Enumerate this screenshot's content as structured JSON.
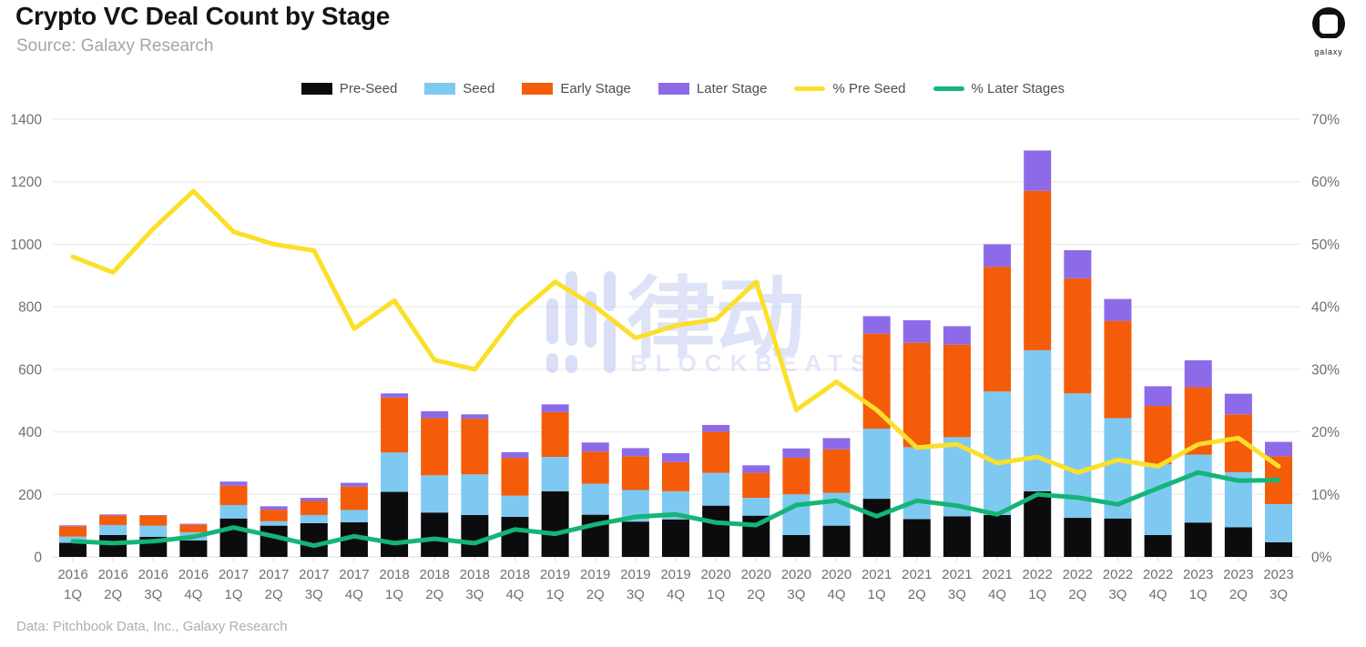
{
  "header": {
    "title": "Crypto VC Deal Count by Stage",
    "subtitle": "Source: Galaxy Research"
  },
  "logo": {
    "label": "galaxy"
  },
  "watermark": {
    "cjk": "律动",
    "latin": "BLOCKBEATS"
  },
  "footer": {
    "text": "Data: Pitchbook Data, Inc., Galaxy Research"
  },
  "chart_data": {
    "type": "combo: stacked bar (left axis) + line (right axis)",
    "title": "Crypto VC Deal Count by Stage",
    "legend_position": "top",
    "grid": true,
    "categories": [
      "2016 1Q",
      "2016 2Q",
      "2016 3Q",
      "2016 4Q",
      "2017 1Q",
      "2017 2Q",
      "2017 3Q",
      "2017 4Q",
      "2018 1Q",
      "2018 2Q",
      "2018 3Q",
      "2018 4Q",
      "2019 1Q",
      "2019 2Q",
      "2019 3Q",
      "2019 4Q",
      "2020 1Q",
      "2020 2Q",
      "2020 3Q",
      "2020 4Q",
      "2021 1Q",
      "2021 2Q",
      "2021 3Q",
      "2021 4Q",
      "2022 1Q",
      "2022 2Q",
      "2022 3Q",
      "2022 4Q",
      "2023 1Q",
      "2023 2Q",
      "2023 3Q"
    ],
    "left_axis": {
      "min": 0,
      "max": 1400,
      "ticks": [
        0,
        200,
        400,
        600,
        800,
        1000,
        1200,
        1400
      ]
    },
    "right_axis": {
      "min": 0,
      "max": 70,
      "ticks": [
        0,
        10,
        20,
        30,
        40,
        50,
        60,
        70
      ],
      "suffix": "%"
    },
    "series": [
      {
        "name": "Pre-Seed",
        "kind": "bar",
        "axis": "left",
        "color": "#0c0c0e",
        "values": [
          45,
          70,
          64,
          53,
          123,
          100,
          108,
          111,
          208,
          142,
          134,
          128,
          210,
          135,
          113,
          120,
          164,
          132,
          70,
          100,
          186,
          121,
          130,
          134,
          210,
          125,
          123,
          70,
          110,
          95,
          47
        ]
      },
      {
        "name": "Seed",
        "kind": "bar",
        "axis": "left",
        "color": "#7ec9f1",
        "values": [
          20,
          32,
          36,
          26,
          43,
          14,
          26,
          39,
          126,
          119,
          130,
          68,
          110,
          99,
          101,
          90,
          105,
          57,
          130,
          105,
          224,
          230,
          253,
          395,
          451,
          398,
          321,
          226,
          217,
          176,
          122
        ]
      },
      {
        "name": "Early Stage",
        "kind": "bar",
        "axis": "left",
        "color": "#f45c09",
        "values": [
          33,
          31,
          32,
          24,
          62,
          37,
          45,
          75,
          176,
          183,
          178,
          121,
          143,
          103,
          108,
          93,
          131,
          80,
          117,
          139,
          304,
          334,
          296,
          399,
          510,
          368,
          311,
          187,
          216,
          185,
          153
        ]
      },
      {
        "name": "Later Stage",
        "kind": "bar",
        "axis": "left",
        "color": "#8d6be8",
        "values": [
          3,
          3,
          2,
          3,
          13,
          11,
          10,
          12,
          13,
          22,
          14,
          18,
          25,
          29,
          26,
          29,
          22,
          24,
          30,
          36,
          56,
          72,
          59,
          72,
          129,
          90,
          70,
          63,
          86,
          66,
          46
        ]
      },
      {
        "name": "% Pre Seed",
        "kind": "line",
        "axis": "right",
        "color": "#fbdf2b",
        "values": [
          48,
          45.5,
          52.5,
          58.5,
          52,
          50,
          49,
          36.5,
          41,
          31.5,
          30,
          38.5,
          44,
          40,
          35,
          37,
          38,
          44,
          23.5,
          28,
          23.5,
          17.5,
          18,
          15,
          16,
          13.5,
          15.5,
          14.5,
          18,
          19,
          14.5
        ]
      },
      {
        "name": "% Later Stages",
        "kind": "line",
        "axis": "right",
        "color": "#14b577",
        "values": [
          2.5,
          2.2,
          2.5,
          3.2,
          4.7,
          3.3,
          1.8,
          3.3,
          2.2,
          2.9,
          2.2,
          4.4,
          3.7,
          5.2,
          6.4,
          6.8,
          5.5,
          5.1,
          8.3,
          9,
          6.5,
          9,
          8.2,
          6.8,
          10,
          9.5,
          8.4,
          11,
          13.5,
          12.2,
          12.3
        ]
      }
    ]
  }
}
